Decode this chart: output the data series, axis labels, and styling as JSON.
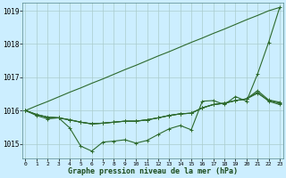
{
  "background_color": "#cceeff",
  "grid_color": "#aacccc",
  "line_color": "#2d6a2d",
  "xlabel": "Graphe pression niveau de la mer (hPa)",
  "ylim": [
    1014.55,
    1019.25
  ],
  "xlim": [
    -0.3,
    23.3
  ],
  "yticks": [
    1015,
    1016,
    1017,
    1018,
    1019
  ],
  "xticks": [
    0,
    1,
    2,
    3,
    4,
    5,
    6,
    7,
    8,
    9,
    10,
    11,
    12,
    13,
    14,
    15,
    16,
    17,
    18,
    19,
    20,
    21,
    22,
    23
  ],
  "line_main": [
    1016.0,
    1015.85,
    1015.75,
    1015.78,
    1015.48,
    1014.93,
    1014.78,
    1015.05,
    1015.08,
    1015.12,
    1015.02,
    1015.1,
    1015.28,
    1015.45,
    1015.55,
    1015.42,
    1016.28,
    1016.3,
    1016.18,
    1016.42,
    1016.28,
    1017.1,
    1018.05,
    1019.1
  ],
  "line_smooth1": [
    1016.0,
    1015.88,
    1015.8,
    1015.78,
    1015.72,
    1015.65,
    1015.6,
    1015.62,
    1015.65,
    1015.68,
    1015.68,
    1015.72,
    1015.78,
    1015.85,
    1015.9,
    1015.92,
    1016.08,
    1016.18,
    1016.22,
    1016.3,
    1016.35,
    1016.52,
    1016.3,
    1016.22
  ],
  "line_smooth2": [
    1016.0,
    1015.88,
    1015.8,
    1015.78,
    1015.72,
    1015.65,
    1015.6,
    1015.62,
    1015.65,
    1015.68,
    1015.68,
    1015.72,
    1015.78,
    1015.85,
    1015.9,
    1015.92,
    1016.08,
    1016.18,
    1016.22,
    1016.3,
    1016.35,
    1016.55,
    1016.28,
    1016.18
  ],
  "line_smooth3": [
    1016.0,
    1015.88,
    1015.8,
    1015.78,
    1015.72,
    1015.65,
    1015.6,
    1015.62,
    1015.65,
    1015.68,
    1015.68,
    1015.72,
    1015.78,
    1015.85,
    1015.9,
    1015.92,
    1016.08,
    1016.18,
    1016.22,
    1016.3,
    1016.35,
    1016.6,
    1016.32,
    1016.25
  ],
  "line_upper": [
    1016.0,
    1016.14,
    1016.27,
    1016.41,
    1016.55,
    1016.68,
    1016.82,
    1016.95,
    1017.09,
    1017.23,
    1017.36,
    1017.5,
    1017.64,
    1017.77,
    1017.91,
    1018.05,
    1018.18,
    1018.32,
    1018.45,
    1018.59,
    1018.73,
    1018.86,
    1019.0,
    1019.1
  ]
}
